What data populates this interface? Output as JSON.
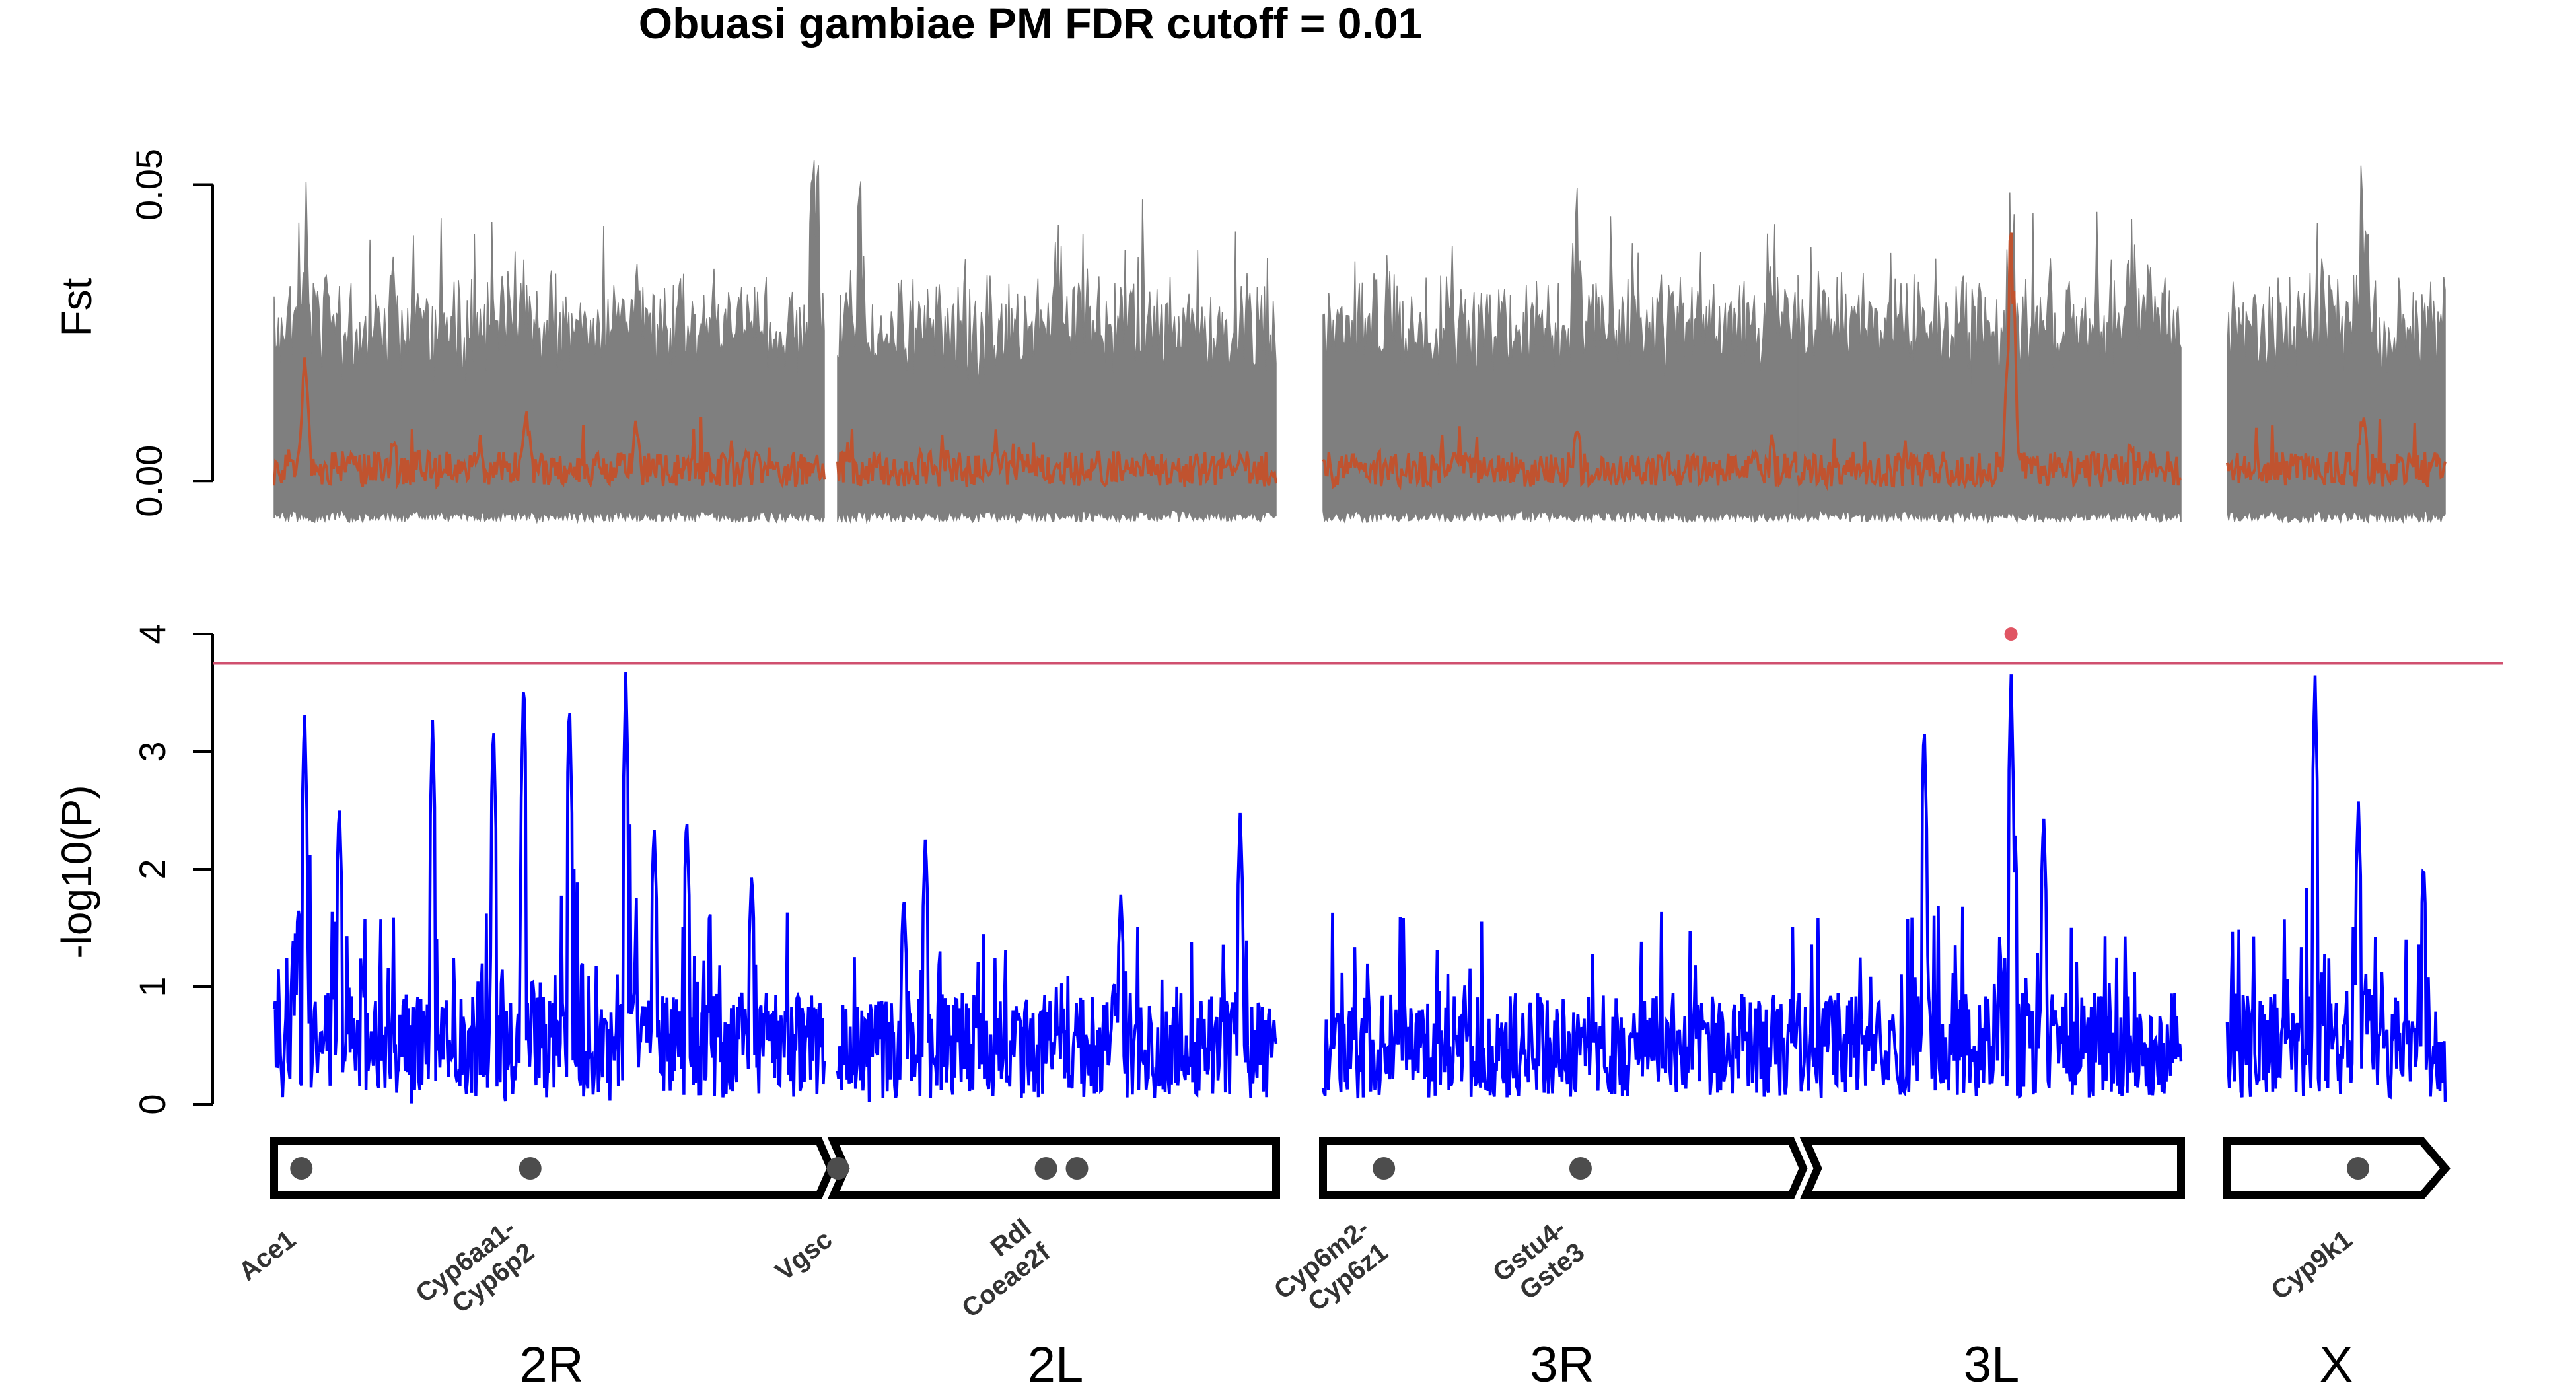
{
  "chart_data": {
    "type": "line",
    "title": "Obuasi gambiae PM FDR cutoff = 0.01",
    "colors": {
      "fst_perm": "#7f7f7f",
      "fst_obs": "#c0532f",
      "pval": "#0000ff",
      "threshold": "#d0506f",
      "sig_point": "#e05563",
      "chrom_outline": "#000000",
      "gene_marker": "#4d4d4d"
    },
    "fst_panel": {
      "ylabel": "Fst",
      "ylim": [
        -0.008,
        0.07
      ],
      "yticks": [
        0.0,
        0.05
      ],
      "ytick_labels": [
        "0.00",
        "0.05"
      ],
      "peaks": [
        {
          "x": 0.014,
          "perm": 0.056,
          "obs": 0.022
        },
        {
          "x": 0.055,
          "perm": 0.04,
          "obs": 0.008
        },
        {
          "x": 0.116,
          "perm": 0.04,
          "obs": 0.015
        },
        {
          "x": 0.167,
          "perm": 0.038,
          "obs": 0.012
        },
        {
          "x": 0.249,
          "perm": 0.066,
          "obs": 0.004
        },
        {
          "x": 0.27,
          "perm": 0.052,
          "obs": 0.006
        },
        {
          "x": 0.361,
          "perm": 0.046,
          "obs": 0.006
        },
        {
          "x": 0.414,
          "perm": 0.03,
          "obs": 0.004
        },
        {
          "x": 0.47,
          "perm": 0.038,
          "obs": 0.008
        },
        {
          "x": 0.6,
          "perm": 0.05,
          "obs": 0.01
        },
        {
          "x": 0.69,
          "perm": 0.052,
          "obs": 0.008
        },
        {
          "x": 0.8,
          "perm": 0.052,
          "obs": 0.046
        },
        {
          "x": 0.855,
          "perm": 0.052,
          "obs": 0.008
        },
        {
          "x": 0.962,
          "perm": 0.064,
          "obs": 0.014
        }
      ],
      "reference_line": 0.0
    },
    "pval_panel": {
      "ylabel": "-log10(P)",
      "ylim": [
        0,
        4
      ],
      "yticks": [
        0,
        1,
        2,
        3,
        4
      ],
      "ytick_labels": [
        "0",
        "1",
        "2",
        "3",
        "4"
      ],
      "threshold": 3.75,
      "significant_points": [
        {
          "x": 0.8,
          "y": 4.0
        }
      ],
      "peaks": [
        {
          "x": 0.014,
          "y": 3.4
        },
        {
          "x": 0.073,
          "y": 3.3
        },
        {
          "x": 0.101,
          "y": 3.3
        },
        {
          "x": 0.115,
          "y": 3.7
        },
        {
          "x": 0.136,
          "y": 3.5
        },
        {
          "x": 0.162,
          "y": 3.7
        },
        {
          "x": 0.175,
          "y": 2.4
        },
        {
          "x": 0.29,
          "y": 1.8
        },
        {
          "x": 0.39,
          "y": 1.8
        },
        {
          "x": 0.445,
          "y": 2.5
        },
        {
          "x": 0.03,
          "y": 2.6
        },
        {
          "x": 0.19,
          "y": 2.5
        },
        {
          "x": 0.22,
          "y": 2.0
        },
        {
          "x": 0.3,
          "y": 2.3
        },
        {
          "x": 0.47,
          "y": 2.6
        },
        {
          "x": 0.76,
          "y": 3.3
        },
        {
          "x": 0.8,
          "y": 3.7
        },
        {
          "x": 0.815,
          "y": 2.5
        },
        {
          "x": 0.94,
          "y": 3.7
        },
        {
          "x": 0.96,
          "y": 2.6
        },
        {
          "x": 0.99,
          "y": 2.1
        }
      ]
    },
    "chromosomes": [
      {
        "name": "2R",
        "shape": "left-end",
        "segments": [
          "2R"
        ]
      },
      {
        "name": "2L",
        "shape": "right-end",
        "segments": [
          "2L"
        ]
      },
      {
        "name": "3R",
        "shape": "left-end",
        "segments": [
          "3R"
        ]
      },
      {
        "name": "3L",
        "shape": "right-end",
        "segments": [
          "3L"
        ]
      },
      {
        "name": "X",
        "shape": "arrow",
        "segments": [
          "X"
        ]
      }
    ],
    "chrom_labels": [
      "2R",
      "2L",
      "3R",
      "3L",
      "X"
    ],
    "genes": [
      {
        "label": [
          "Ace1"
        ],
        "chrom": "2R",
        "pos": 0.05
      },
      {
        "label": [
          "Cyp6aa1-",
          "Cyp6p2"
        ],
        "chrom": "2R",
        "pos": 0.47
      },
      {
        "label": [
          "Vgsc"
        ],
        "chrom": "2L",
        "pos": 0.01
      },
      {
        "label": [
          "Rdl",
          "Coeae2f"
        ],
        "chrom": "2L",
        "pos": 0.48,
        "extra_pos": 0.55
      },
      {
        "label": [
          "Cyp6m2-",
          "Cyp6z1"
        ],
        "chrom": "3R",
        "pos": 0.13
      },
      {
        "label": [
          "Gstu4-",
          "Gste3"
        ],
        "chrom": "3R",
        "pos": 0.55
      },
      {
        "label": [
          "Cyp9k1"
        ],
        "chrom": "X",
        "pos": 0.6
      }
    ]
  }
}
